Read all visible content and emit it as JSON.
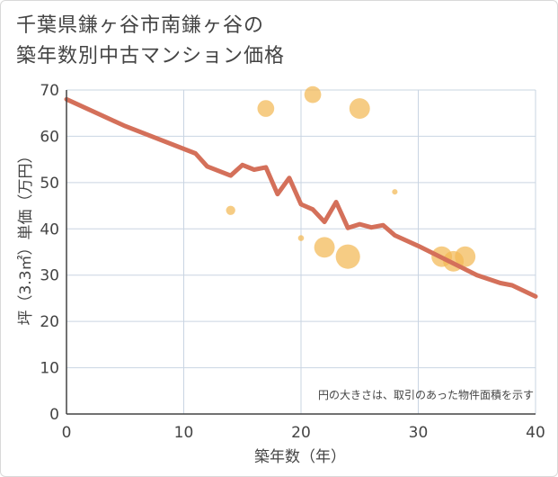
{
  "title_lines": [
    "千葉県鎌ヶ谷市南鎌ヶ谷の",
    "築年数別中古マンション価格"
  ],
  "chart_data": {
    "type": "scatter",
    "xlabel": "築年数（年）",
    "ylabel": "坪（3.3㎡）単価（万円）",
    "xlim": [
      0,
      40
    ],
    "ylim": [
      0,
      70
    ],
    "xticks": [
      0,
      10,
      20,
      30,
      40
    ],
    "yticks": [
      0,
      10,
      20,
      30,
      40,
      50,
      60,
      70
    ],
    "grid": true,
    "note": "円の大きさは、取引のあった物件面積を示す",
    "colors": {
      "bubble": "#f3b955",
      "line": "#d4705a",
      "grid": "#c9d4e2"
    },
    "bubbles": [
      {
        "x": 14,
        "y": 44,
        "size": 1.5
      },
      {
        "x": 17,
        "y": 66,
        "size": 3.5
      },
      {
        "x": 20,
        "y": 38,
        "size": 0.6
      },
      {
        "x": 21,
        "y": 69,
        "size": 3.5
      },
      {
        "x": 22,
        "y": 36,
        "size": 4.5
      },
      {
        "x": 24,
        "y": 34,
        "size": 5.5
      },
      {
        "x": 25,
        "y": 66,
        "size": 4.5
      },
      {
        "x": 28,
        "y": 48,
        "size": 0.5
      },
      {
        "x": 32,
        "y": 34,
        "size": 4.5
      },
      {
        "x": 33,
        "y": 33,
        "size": 4.5
      },
      {
        "x": 34,
        "y": 34,
        "size": 4.5
      }
    ],
    "line": {
      "x": [
        0,
        5,
        11,
        12,
        14,
        15,
        16,
        17,
        18,
        19,
        20,
        21,
        22,
        23,
        24,
        25,
        26,
        27,
        28,
        30,
        35,
        37,
        38,
        40
      ],
      "y": [
        68,
        62.2,
        56.3,
        53.5,
        51.5,
        53.8,
        52.8,
        53.3,
        47.5,
        51,
        45.3,
        44.2,
        41.5,
        45.8,
        40.2,
        41,
        40.3,
        40.8,
        38.6,
        36.3,
        30,
        28.3,
        27.8,
        25.4
      ]
    }
  }
}
